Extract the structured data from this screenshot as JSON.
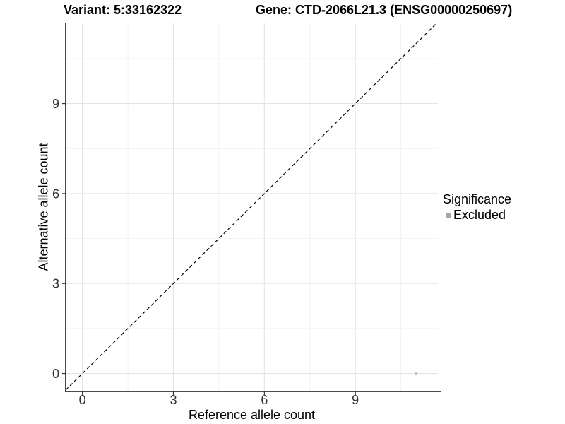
{
  "chart_data": {
    "type": "scatter",
    "title_left": "Variant: 5:33162322",
    "title_right": "Gene: CTD-2066L21.3 (ENSG00000250697)",
    "xlabel": "Reference allele count",
    "ylabel": "Alternative allele count",
    "xlim": [
      -0.55,
      11.72
    ],
    "ylim": [
      -0.6,
      11.7
    ],
    "x_ticks": [
      0,
      3,
      6,
      9
    ],
    "y_ticks": [
      0,
      3,
      6,
      9
    ],
    "x_minor_ticks": [
      1.5,
      4.5,
      7.5,
      10.5
    ],
    "y_minor_ticks": [
      1.5,
      4.5,
      7.5,
      10.5
    ],
    "grid": "major+minor",
    "legend": {
      "position": "right",
      "title": "Significance",
      "items": [
        {
          "label": "Excluded",
          "color": "#a6a6a6"
        }
      ]
    },
    "series": [
      {
        "name": "Excluded",
        "color": "#c4c4c4",
        "points": [
          {
            "x": 11,
            "y": 0
          }
        ]
      }
    ],
    "reference_line": {
      "type": "identity_y_equals_x",
      "style": "dashed",
      "color": "#000000"
    },
    "colors": {
      "grid_major": "#e4e4e4",
      "grid_minor": "#f2f2f2",
      "axis_line": "#333333",
      "tick_text": "#333333",
      "background": "#ffffff"
    }
  }
}
